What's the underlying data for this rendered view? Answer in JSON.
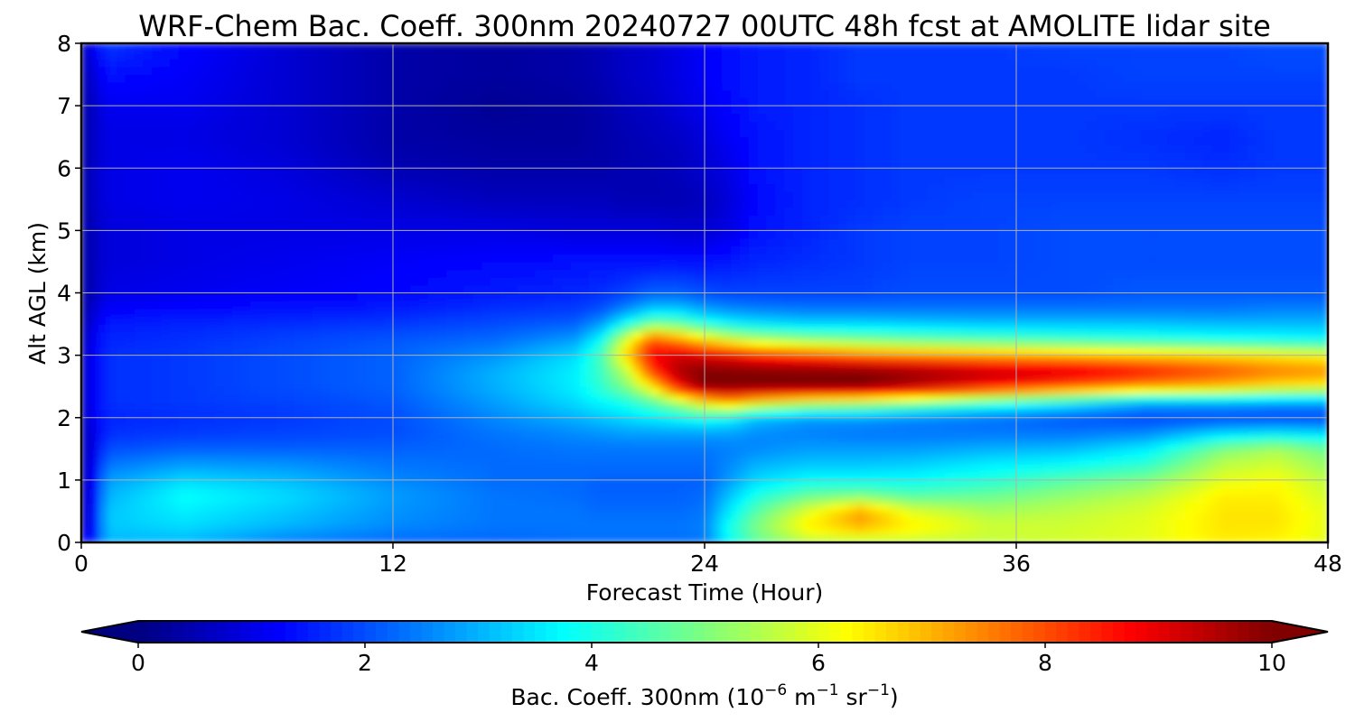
{
  "chart_data": {
    "type": "heatmap",
    "title": "WRF-Chem Bac. Coeff. 300nm  20240727 00UTC 48h fcst at AMOLITE lidar site",
    "xlabel": "Forecast Time (Hour)",
    "ylabel": "Alt AGL (km)",
    "xlim": [
      0,
      48
    ],
    "ylim": [
      0,
      8
    ],
    "xticks": [
      0,
      12,
      24,
      36,
      48
    ],
    "yticks": [
      0,
      1,
      2,
      3,
      4,
      5,
      6,
      7,
      8
    ],
    "grid": true,
    "colormap": "jet",
    "colorbar": {
      "label_main": "Bac. Coeff. 300nm  (10",
      "label_exp1": "−6",
      "label_m": " m",
      "label_exp2": "−1",
      "label_sr": " sr",
      "label_exp3": "−1",
      "label_close": ")",
      "range": [
        0,
        10
      ],
      "ticks": [
        0,
        2,
        4,
        6,
        8,
        10
      ],
      "extend": "both",
      "placement": "bottom"
    },
    "x_hours": [
      0,
      0.5,
      1,
      4,
      8,
      12,
      16,
      19,
      20,
      21,
      22,
      23,
      24,
      25,
      26,
      28,
      30,
      32,
      35,
      38,
      41,
      44,
      46,
      48
    ],
    "y_km": [
      0,
      0.25,
      0.5,
      0.75,
      1.0,
      1.25,
      1.5,
      1.75,
      2.0,
      2.25,
      2.5,
      2.75,
      3.0,
      3.25,
      3.5,
      3.75,
      4.0,
      4.5,
      5.0,
      5.5,
      6.0,
      6.5,
      7.0,
      7.5,
      8.0
    ],
    "z_values": [
      [
        1.2,
        1.6,
        3.0,
        3.0,
        2.4,
        2.2,
        2.2,
        2.3,
        2.3,
        2.3,
        2.3,
        2.3,
        2.4,
        3.8,
        4.6,
        5.5,
        5.5,
        5.6,
        5.6,
        5.8,
        6.0,
        6.4,
        6.3,
        6.0
      ],
      [
        0.6,
        1.4,
        3.2,
        3.4,
        3.0,
        2.6,
        2.4,
        2.4,
        2.4,
        2.4,
        2.4,
        2.4,
        2.5,
        4.0,
        5.0,
        6.4,
        7.0,
        6.4,
        5.8,
        5.8,
        6.0,
        6.5,
        6.5,
        6.0
      ],
      [
        0.5,
        1.4,
        3.2,
        3.6,
        3.2,
        2.7,
        2.4,
        2.4,
        2.3,
        2.3,
        2.3,
        2.3,
        2.4,
        3.6,
        4.6,
        6.0,
        7.2,
        6.0,
        5.4,
        5.6,
        5.9,
        6.5,
        6.5,
        6.0
      ],
      [
        0.5,
        1.3,
        3.0,
        3.8,
        3.4,
        2.8,
        2.4,
        2.3,
        2.2,
        2.2,
        2.2,
        2.2,
        2.3,
        3.2,
        4.0,
        4.8,
        5.0,
        4.6,
        4.8,
        5.2,
        5.6,
        6.4,
        6.4,
        5.8
      ],
      [
        0.5,
        1.2,
        2.8,
        3.4,
        3.1,
        2.6,
        2.3,
        2.3,
        2.2,
        2.2,
        2.2,
        2.2,
        2.2,
        2.8,
        3.4,
        3.8,
        3.8,
        3.8,
        4.1,
        4.6,
        5.0,
        6.0,
        6.2,
        5.6
      ],
      [
        0.5,
        1.1,
        2.4,
        2.8,
        2.7,
        2.4,
        2.3,
        2.3,
        2.3,
        2.3,
        2.3,
        2.3,
        2.3,
        2.6,
        3.0,
        3.2,
        3.2,
        3.3,
        3.6,
        3.8,
        4.2,
        5.6,
        5.8,
        5.2
      ],
      [
        0.5,
        1.0,
        2.0,
        2.2,
        2.2,
        2.2,
        2.3,
        2.4,
        2.4,
        2.4,
        2.4,
        2.4,
        2.4,
        2.5,
        2.6,
        2.8,
        2.8,
        2.8,
        3.0,
        3.1,
        3.6,
        5.0,
        5.4,
        4.8
      ],
      [
        0.5,
        1.0,
        1.7,
        1.8,
        1.9,
        2.0,
        2.4,
        2.6,
        2.7,
        2.8,
        2.8,
        2.8,
        2.8,
        2.8,
        2.6,
        2.5,
        2.4,
        2.4,
        2.4,
        2.4,
        2.6,
        3.4,
        3.6,
        3.4
      ],
      [
        0.6,
        1.1,
        1.6,
        1.7,
        1.8,
        2.0,
        2.6,
        3.0,
        3.2,
        3.4,
        3.6,
        3.8,
        4.0,
        3.8,
        3.2,
        2.8,
        2.8,
        2.6,
        2.4,
        2.1,
        1.9,
        1.9,
        1.9,
        1.9
      ],
      [
        0.6,
        1.2,
        1.7,
        1.8,
        1.9,
        2.1,
        2.8,
        3.4,
        3.7,
        4.0,
        4.6,
        5.4,
        6.4,
        7.0,
        6.4,
        5.8,
        5.6,
        5.2,
        4.4,
        3.8,
        3.0,
        3.0,
        2.8,
        2.8
      ],
      [
        0.6,
        1.2,
        1.7,
        1.8,
        2.0,
        2.2,
        3.0,
        3.6,
        4.2,
        5.0,
        6.4,
        8.6,
        10.0,
        10.0,
        10.0,
        10.0,
        10.0,
        9.4,
        8.6,
        7.8,
        7.2,
        6.8,
        6.4,
        6.2
      ],
      [
        0.6,
        1.2,
        1.7,
        1.8,
        2.0,
        2.2,
        3.0,
        3.6,
        4.3,
        5.6,
        8.2,
        9.6,
        10.0,
        10.0,
        10.0,
        10.0,
        10.0,
        9.8,
        9.4,
        9.2,
        8.6,
        8.0,
        7.6,
        7.4
      ],
      [
        0.6,
        1.2,
        1.7,
        1.8,
        2.0,
        2.2,
        2.7,
        3.4,
        4.4,
        6.6,
        8.8,
        9.2,
        9.0,
        8.8,
        8.4,
        8.0,
        7.6,
        7.4,
        7.2,
        7.0,
        6.8,
        6.6,
        6.4,
        6.2
      ],
      [
        0.5,
        1.1,
        1.6,
        1.7,
        1.9,
        2.1,
        2.3,
        2.8,
        3.8,
        6.0,
        8.0,
        7.4,
        6.6,
        6.0,
        5.6,
        5.2,
        5.0,
        4.8,
        4.6,
        4.4,
        4.2,
        4.0,
        3.9,
        3.8
      ],
      [
        0.4,
        1.0,
        1.5,
        1.6,
        1.7,
        1.8,
        2.0,
        2.2,
        2.8,
        4.0,
        5.0,
        4.8,
        4.2,
        3.8,
        3.6,
        3.4,
        3.4,
        3.3,
        3.2,
        3.2,
        3.2,
        3.1,
        3.1,
        3.1
      ],
      [
        0.3,
        0.8,
        1.2,
        1.3,
        1.4,
        1.5,
        1.7,
        1.8,
        2.0,
        2.6,
        3.2,
        3.2,
        2.8,
        2.6,
        2.5,
        2.4,
        2.4,
        2.4,
        2.4,
        2.4,
        2.4,
        2.4,
        2.5,
        2.5
      ],
      [
        0.3,
        0.6,
        1.0,
        1.1,
        1.2,
        1.3,
        1.5,
        1.6,
        1.7,
        1.9,
        2.2,
        2.2,
        2.0,
        1.9,
        1.9,
        1.9,
        1.9,
        2.0,
        2.0,
        2.0,
        2.1,
        2.1,
        2.1,
        2.1
      ],
      [
        0.3,
        0.6,
        0.9,
        1.0,
        1.1,
        1.2,
        1.3,
        1.4,
        1.4,
        1.4,
        1.4,
        1.4,
        1.4,
        1.5,
        1.6,
        1.7,
        1.8,
        1.9,
        1.9,
        2.0,
        2.0,
        2.0,
        2.0,
        2.0
      ],
      [
        0.3,
        0.6,
        0.9,
        1.0,
        1.0,
        1.0,
        1.0,
        0.9,
        0.9,
        0.9,
        0.9,
        0.8,
        0.8,
        1.0,
        1.4,
        1.6,
        1.8,
        1.9,
        1.9,
        2.0,
        2.0,
        2.0,
        2.0,
        2.0
      ],
      [
        0.3,
        0.7,
        1.0,
        1.1,
        1.0,
        0.8,
        0.6,
        0.6,
        0.6,
        0.5,
        0.5,
        0.5,
        0.6,
        0.9,
        1.3,
        1.6,
        1.7,
        1.8,
        1.9,
        1.9,
        1.9,
        1.9,
        1.9,
        1.9
      ],
      [
        0.3,
        0.7,
        1.0,
        1.1,
        0.9,
        0.5,
        0.4,
        0.4,
        0.4,
        0.5,
        0.5,
        0.6,
        0.8,
        1.0,
        1.4,
        1.6,
        1.7,
        1.8,
        1.8,
        1.8,
        1.8,
        1.7,
        1.8,
        1.8
      ],
      [
        0.3,
        0.7,
        1.0,
        1.0,
        0.8,
        0.4,
        0.3,
        0.3,
        0.4,
        0.5,
        0.6,
        0.7,
        0.9,
        1.2,
        1.4,
        1.6,
        1.7,
        1.8,
        1.8,
        1.8,
        1.7,
        1.6,
        1.8,
        1.8
      ],
      [
        0.3,
        0.7,
        1.1,
        1.1,
        0.8,
        0.4,
        0.2,
        0.3,
        0.4,
        0.6,
        0.7,
        0.9,
        1.1,
        1.3,
        1.5,
        1.6,
        1.7,
        1.8,
        1.8,
        1.8,
        1.8,
        1.8,
        1.8,
        1.8
      ],
      [
        0.4,
        0.9,
        1.4,
        1.2,
        0.8,
        0.4,
        0.3,
        0.4,
        0.5,
        0.7,
        0.8,
        1.0,
        1.2,
        1.4,
        1.5,
        1.6,
        1.8,
        1.8,
        1.8,
        1.8,
        1.9,
        1.9,
        1.9,
        1.9
      ],
      [
        0.5,
        1.2,
        1.8,
        1.3,
        0.8,
        0.4,
        0.3,
        0.4,
        0.5,
        0.7,
        0.8,
        1.0,
        1.2,
        1.4,
        1.5,
        1.6,
        1.8,
        1.8,
        1.8,
        1.9,
        1.9,
        1.9,
        2.0,
        2.0
      ]
    ]
  }
}
